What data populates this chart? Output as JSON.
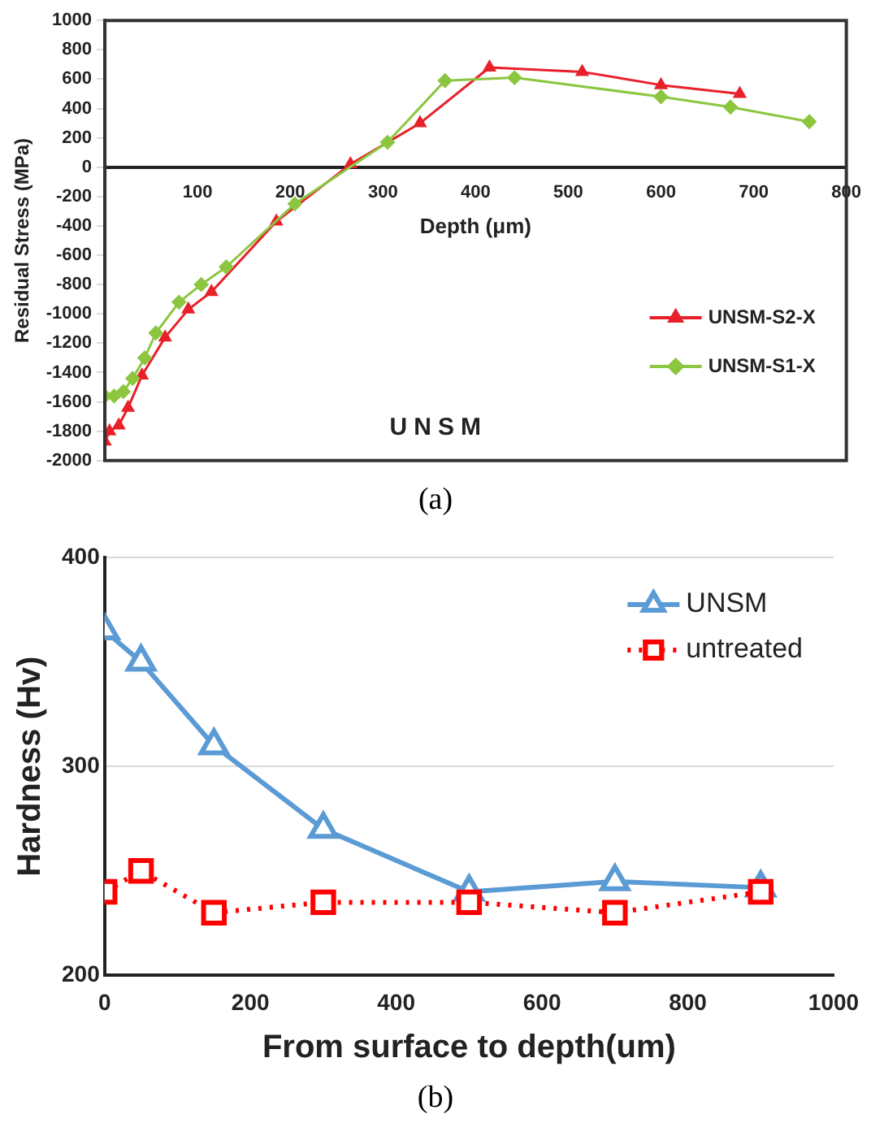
{
  "chart_data": [
    {
      "type": "line",
      "xlabel": "Depth (μm)",
      "ylabel": "Residual Stress (MPa)",
      "xlim": [
        0,
        800
      ],
      "ylim": [
        -2000,
        1000
      ],
      "xticks": [
        {
          "value": 0,
          "label": null
        },
        100,
        200,
        300,
        400,
        500,
        600,
        700,
        800
      ],
      "yticks": [
        -2000,
        -1800,
        -1600,
        -1400,
        -1200,
        -1000,
        -800,
        -600,
        -400,
        -200,
        0,
        200,
        400,
        600,
        800,
        1000
      ],
      "grid": false,
      "legend": "right",
      "annotations": [
        "UNSM",
        "(a)"
      ],
      "series": [
        {
          "name": "UNSM-S2-X",
          "color": "#e8202a",
          "marker": "triangle",
          "x": [
            0,
            5,
            15,
            25,
            40,
            65,
            90,
            115,
            185,
            265,
            340,
            415,
            515,
            600,
            685
          ],
          "values": [
            -1870,
            -1800,
            -1760,
            -1640,
            -1420,
            -1160,
            -970,
            -850,
            -370,
            20,
            300,
            680,
            650,
            560,
            500
          ]
        },
        {
          "name": "UNSM-S1-X",
          "color": "#8cc63f",
          "marker": "diamond",
          "x": [
            0,
            10,
            20,
            30,
            43,
            55,
            80,
            104,
            131,
            205,
            305,
            367,
            442,
            600,
            675,
            760
          ],
          "values": [
            -1560,
            -1560,
            -1530,
            -1440,
            -1300,
            -1130,
            -920,
            -800,
            -680,
            -250,
            170,
            590,
            610,
            480,
            410,
            310
          ]
        }
      ]
    },
    {
      "type": "line",
      "xlabel": "From surface to depth(um)",
      "ylabel": "Hardness (Hv)",
      "xlim": [
        0,
        1000
      ],
      "ylim": [
        200,
        400
      ],
      "xticks": [
        0,
        200,
        400,
        600,
        800,
        1000
      ],
      "yticks": [
        200,
        300,
        400
      ],
      "grid": "y",
      "legend": "top right",
      "annotations": [
        "(b)"
      ],
      "series": [
        {
          "name": "UNSM",
          "color": "#5b9bd5",
          "marker": "triangle",
          "line_style": "solid",
          "x": [
            0,
            50,
            150,
            300,
            500,
            700,
            900
          ],
          "values": [
            365,
            350,
            310,
            270,
            240,
            245,
            242
          ]
        },
        {
          "name": "untreated",
          "color": "#ff0000",
          "marker": "square",
          "line_style": "dotted",
          "x": [
            0,
            50,
            150,
            300,
            500,
            700,
            900
          ],
          "values": [
            240,
            250,
            230,
            235,
            235,
            230,
            240
          ]
        }
      ]
    }
  ]
}
